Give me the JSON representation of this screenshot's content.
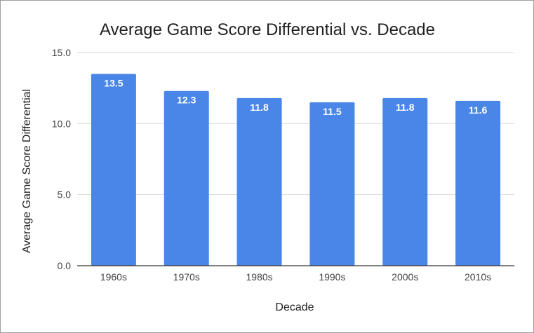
{
  "chart_data": {
    "type": "bar",
    "title": "Average Game Score Differential vs. Decade",
    "xlabel": "Decade",
    "ylabel": "Average Game Score Differential",
    "categories": [
      "1960s",
      "1970s",
      "1980s",
      "1990s",
      "2000s",
      "2010s"
    ],
    "values": [
      13.5,
      12.3,
      11.8,
      11.5,
      11.8,
      11.6
    ],
    "value_labels": [
      "13.5",
      "12.3",
      "11.8",
      "11.5",
      "11.8",
      "11.6"
    ],
    "ylim": [
      0,
      15
    ],
    "yticks": [
      0,
      5,
      10,
      15
    ],
    "ytick_labels": [
      "0.0",
      "5.0",
      "10.0",
      "15.0"
    ],
    "grid": true,
    "legend": "none",
    "colors": {
      "bar": "#4a86e8",
      "grid": "#d9d9d9",
      "axis": "#333333"
    }
  }
}
